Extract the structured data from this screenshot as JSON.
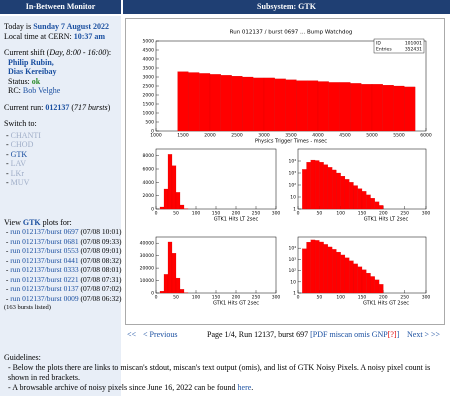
{
  "header": {
    "left": "In-Between Monitor",
    "right": "Subsystem: GTK"
  },
  "sidebar": {
    "today_label": "Today is",
    "today": "Sunday 7 August 2022",
    "time_label": "Local time at CERN:",
    "time": "10:37 am",
    "shift_prefix": "Current shift (",
    "shift_period": "Day, 8:00 - 16:00",
    "shift_suffix": "):",
    "shifters": [
      "Philip Rubin,",
      "Dias Kereibay"
    ],
    "status_label": "Status:",
    "status": "ok",
    "rc_label": "RC:",
    "rc": "Bob Velghe",
    "run_label": "Current run:",
    "run": "012137",
    "run_bursts": "717 bursts",
    "switch_label": "Switch to:",
    "switch": [
      "CHANTI",
      "CHOD",
      "GTK",
      "LAV",
      "LKr",
      "MUV"
    ],
    "view_prefix": "View",
    "view_subsystem": "GTK",
    "view_suffix": "plots for:",
    "bursts": [
      {
        "link": "run 012137/burst 0697",
        "time": "(07/08 10:01)"
      },
      {
        "link": "run 012137/burst 0681",
        "time": "(07/08 09:33)"
      },
      {
        "link": "run 012137/burst 0553",
        "time": "(07/08 09:01)"
      },
      {
        "link": "run 012137/burst 0441",
        "time": "(07/08 08:32)"
      },
      {
        "link": "run 012137/burst 0333",
        "time": "(07/08 08:01)"
      },
      {
        "link": "run 012137/burst 0221",
        "time": "(07/08 07:31)"
      },
      {
        "link": "run 012137/burst 0137",
        "time": "(07/08 07:02)"
      },
      {
        "link": "run 012137/burst 0009",
        "time": "(07/08 06:32)"
      }
    ],
    "listed": "(163 bursts listed)"
  },
  "plots": [
    {
      "title": "Run 012137 / burst 0697 ... Bump Watchdog",
      "stats": [
        [
          "ID",
          "101001"
        ],
        [
          "Entries",
          "352431"
        ]
      ],
      "xlabel": "Physics Trigger Times - msec",
      "xlim": [
        1000,
        6000
      ],
      "xticks": [
        1000,
        1500,
        2000,
        2500,
        3000,
        3500,
        4000,
        4500,
        5000,
        5500,
        6000
      ],
      "ylim": [
        0,
        5000
      ],
      "yticks": [
        0,
        500,
        1000,
        1500,
        2000,
        2500,
        3000,
        3500,
        4000,
        4500,
        5000
      ],
      "log": false,
      "bins": [
        1400,
        1600,
        1800,
        2000,
        2200,
        2400,
        2600,
        2800,
        3000,
        3200,
        3400,
        3600,
        3800,
        4000,
        4200,
        4400,
        4600,
        4800,
        5000,
        5200,
        5400,
        5600,
        5800
      ],
      "counts": [
        3300,
        3250,
        3200,
        3150,
        3100,
        3050,
        3000,
        2950,
        2950,
        2900,
        2850,
        2800,
        2800,
        2750,
        2700,
        2700,
        2650,
        2600,
        2600,
        2550,
        2500,
        2450
      ]
    },
    {
      "xlabel": "GTK1 Hits LT 2sec",
      "xlim": [
        0,
        300
      ],
      "xticks": [
        0,
        50,
        100,
        150,
        200,
        250,
        300
      ],
      "ylim": [
        0,
        9000
      ],
      "yticks": [
        0,
        2000,
        4000,
        6000,
        8000
      ],
      "log": false,
      "bins": [
        10,
        20,
        30,
        40,
        50,
        60,
        70,
        80
      ],
      "counts": [
        300,
        3000,
        8200,
        6500,
        2500,
        600,
        50
      ]
    },
    {
      "xlabel": "GTK1 Hits LT 2sec",
      "xlim": [
        0,
        300
      ],
      "xticks": [
        0,
        50,
        100,
        150,
        200,
        250,
        300
      ],
      "ylim": [
        1,
        100000
      ],
      "yticks": [
        1,
        10,
        {
          "value": 100,
          "label": "10²"
        },
        {
          "value": 1000,
          "label": "10³"
        },
        {
          "value": 10000,
          "label": "10⁴"
        }
      ],
      "log": true,
      "bins": [
        10,
        20,
        30,
        40,
        50,
        60,
        70,
        80,
        90,
        100,
        110,
        120,
        130,
        140,
        150,
        160,
        170,
        180,
        190,
        200
      ],
      "counts": [
        2000,
        8000,
        12000,
        11000,
        8000,
        5000,
        3000,
        1800,
        1000,
        550,
        300,
        170,
        90,
        50,
        30,
        15,
        8,
        4,
        2
      ]
    },
    {
      "xlabel": "GTK1 Hits GT 2sec",
      "xlim": [
        0,
        300
      ],
      "xticks": [
        0,
        50,
        100,
        150,
        200,
        250,
        300
      ],
      "ylim": [
        0,
        45000
      ],
      "yticks": [
        0,
        10000,
        20000,
        30000,
        40000
      ],
      "log": false,
      "bins": [
        10,
        20,
        30,
        40,
        50,
        60,
        70,
        80
      ],
      "counts": [
        1500,
        15000,
        41000,
        32000,
        12000,
        3000,
        250
      ]
    },
    {
      "xlabel": "GTK1 Hits GT 2sec",
      "xlim": [
        0,
        300
      ],
      "xticks": [
        0,
        50,
        100,
        150,
        200,
        250,
        300
      ],
      "ylim": [
        1,
        100000
      ],
      "yticks": [
        1,
        10,
        {
          "value": 100,
          "label": "10²"
        },
        {
          "value": 1000,
          "label": "10³"
        },
        {
          "value": 10000,
          "label": "10⁴"
        }
      ],
      "log": true,
      "bins": [
        10,
        20,
        30,
        40,
        50,
        60,
        70,
        80,
        90,
        100,
        110,
        120,
        130,
        140,
        150,
        160,
        170,
        180,
        190,
        200
      ],
      "counts": [
        9000,
        35000,
        55000,
        50000,
        36000,
        22000,
        13000,
        8000,
        4500,
        2500,
        1400,
        750,
        400,
        220,
        120,
        60,
        30,
        15,
        6
      ]
    }
  ],
  "nav": {
    "first": "<<",
    "prev": "< Previous",
    "page": "Page 1/4, Run 12137, burst 697",
    "open": "[",
    "links": [
      "PDF",
      "miscan",
      "omis",
      "GNP"
    ],
    "help": "[?]",
    "close": "]",
    "next": "Next >",
    "last": ">>"
  },
  "guidelines": {
    "title": "Guidelines:",
    "item1": "- Below the plots there are links to miscan's stdout, miscan's text output (omis), and list of GTK Noisy Pixels. A noisy pixel count is shown in red brackets.",
    "item2_prefix": "- A browsable archive of noisy pixels since June 16, 2022 can be found",
    "item2_link": "here",
    "item2_suffix": "."
  }
}
